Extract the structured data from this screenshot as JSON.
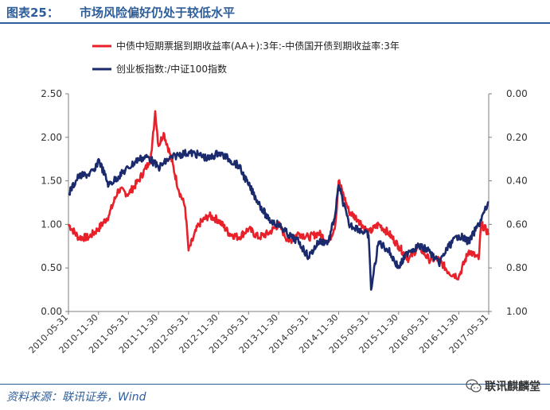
{
  "header": {
    "figure_label": "图表25：",
    "title": "市场风险偏好仍处于较低水平"
  },
  "footer": {
    "source": "资料来源：联讯证券，Wind",
    "brand": "联讯麒麟堂",
    "brand_icon": "wechat-icon"
  },
  "colors": {
    "accent": "#2e5e9a",
    "series_red": "#e8202a",
    "series_navy": "#1a2a6c"
  },
  "chart_data": {
    "type": "line",
    "title": "",
    "xlabel": "",
    "ylabel_left": "",
    "ylabel_right": "",
    "legend_position": "top",
    "grid": false,
    "x_ticks": [
      "2010-05-31",
      "2010-11-30",
      "2011-05-31",
      "2011-11-30",
      "2012-05-31",
      "2012-11-30",
      "2013-05-31",
      "2013-11-30",
      "2014-05-31",
      "2014-11-30",
      "2015-05-31",
      "2015-11-30",
      "2016-05-31",
      "2016-11-30",
      "2017-05-31"
    ],
    "y_left": {
      "min": 0,
      "max": 2.5,
      "ticks": [
        "0.00",
        "0.50",
        "1.00",
        "1.50",
        "2.00",
        "2.50"
      ]
    },
    "y_right": {
      "min": 0,
      "max": 1,
      "inverted": true,
      "ticks": [
        "0.00",
        "0.20",
        "0.40",
        "0.60",
        "0.80",
        "1.00"
      ]
    },
    "series": [
      {
        "name": "中债中短期票据到期收益率(AA+):3年:-中债国开债到期收益率:3年",
        "axis": "left",
        "color": "#e8202a",
        "x": [
          "2010-05-31",
          "2010-07-31",
          "2010-09-30",
          "2010-11-30",
          "2011-01-31",
          "2011-03-31",
          "2011-05-31",
          "2011-07-31",
          "2011-09-30",
          "2011-10-20",
          "2011-11-10",
          "2011-11-30",
          "2011-12-31",
          "2012-02-10",
          "2012-03-31",
          "2012-05-10",
          "2012-05-31",
          "2012-07-31",
          "2012-09-30",
          "2012-11-30",
          "2013-01-31",
          "2013-03-31",
          "2013-05-31",
          "2013-07-31",
          "2013-09-30",
          "2013-11-30",
          "2014-01-31",
          "2014-03-31",
          "2014-05-31",
          "2014-07-31",
          "2014-09-30",
          "2014-11-10",
          "2014-11-30",
          "2015-01-31",
          "2015-03-31",
          "2015-05-31",
          "2015-07-31",
          "2015-09-30",
          "2015-11-30",
          "2016-01-31",
          "2016-03-31",
          "2016-05-31",
          "2016-07-31",
          "2016-09-30",
          "2016-11-30",
          "2017-01-31",
          "2017-03-31",
          "2017-04-15",
          "2017-05-31"
        ],
        "values": [
          1.0,
          0.85,
          0.85,
          0.95,
          1.1,
          1.4,
          1.35,
          1.5,
          1.7,
          1.85,
          2.3,
          1.9,
          2.05,
          1.8,
          1.4,
          1.2,
          0.7,
          1.0,
          1.1,
          1.05,
          0.9,
          0.85,
          0.95,
          0.85,
          0.9,
          1.0,
          0.8,
          0.9,
          0.85,
          0.9,
          0.8,
          1.0,
          1.5,
          1.15,
          1.05,
          0.9,
          1.0,
          0.9,
          0.75,
          0.6,
          0.75,
          0.6,
          0.6,
          0.45,
          0.4,
          0.7,
          0.6,
          1.0,
          0.9
        ]
      },
      {
        "name": "创业板指数:/中证100指数",
        "axis": "right",
        "color": "#1a2a6c",
        "x": [
          "2010-05-31",
          "2010-07-31",
          "2010-09-30",
          "2010-11-10",
          "2010-11-30",
          "2011-01-31",
          "2011-03-31",
          "2011-05-31",
          "2011-07-31",
          "2011-09-30",
          "2011-11-30",
          "2012-01-31",
          "2012-03-31",
          "2012-05-31",
          "2012-07-31",
          "2012-09-30",
          "2012-11-30",
          "2013-01-31",
          "2013-03-31",
          "2013-05-31",
          "2013-07-31",
          "2013-09-30",
          "2013-11-30",
          "2014-01-31",
          "2014-03-31",
          "2014-05-31",
          "2014-07-31",
          "2014-09-30",
          "2014-11-10",
          "2014-11-30",
          "2015-01-31",
          "2015-03-31",
          "2015-05-31",
          "2015-06-15",
          "2015-07-31",
          "2015-09-30",
          "2015-11-30",
          "2016-01-31",
          "2016-03-31",
          "2016-05-31",
          "2016-07-31",
          "2016-09-30",
          "2016-11-30",
          "2017-01-31",
          "2017-03-31",
          "2017-05-31"
        ],
        "values": [
          0.46,
          0.38,
          0.37,
          0.35,
          0.3,
          0.42,
          0.38,
          0.34,
          0.3,
          0.29,
          0.34,
          0.3,
          0.28,
          0.27,
          0.28,
          0.3,
          0.27,
          0.3,
          0.33,
          0.42,
          0.5,
          0.58,
          0.6,
          0.65,
          0.68,
          0.75,
          0.68,
          0.68,
          0.55,
          0.42,
          0.6,
          0.62,
          0.65,
          0.9,
          0.68,
          0.72,
          0.8,
          0.72,
          0.7,
          0.72,
          0.78,
          0.7,
          0.65,
          0.68,
          0.6,
          0.5
        ]
      }
    ]
  }
}
